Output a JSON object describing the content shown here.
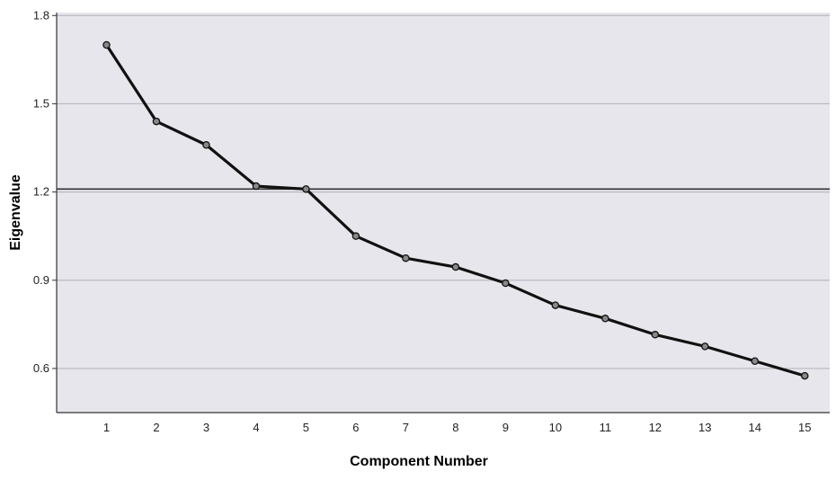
{
  "chart_data": {
    "type": "line",
    "title": "",
    "xlabel": "Component Number",
    "ylabel": "Eigenvalue",
    "x": [
      1,
      2,
      3,
      4,
      5,
      6,
      7,
      8,
      9,
      10,
      11,
      12,
      13,
      14,
      15
    ],
    "x_tick_labels": [
      "1",
      "2",
      "3",
      "4",
      "5",
      "6",
      "7",
      "8",
      "9",
      "10",
      "11",
      "12",
      "13",
      "14",
      "15"
    ],
    "series": [
      {
        "values": [
          1.7,
          1.44,
          1.36,
          1.22,
          1.21,
          1.05,
          0.975,
          0.945,
          0.89,
          0.815,
          0.77,
          0.715,
          0.675,
          0.625,
          0.575
        ]
      }
    ],
    "y_ticks": [
      0.6,
      0.9,
      1.2,
      1.5,
      1.8
    ],
    "y_tick_labels": [
      "0.6",
      "0.9",
      "1.2",
      "1.5",
      "1.8"
    ],
    "xlim": [
      0,
      15.5
    ],
    "ylim": [
      0.45,
      1.81
    ],
    "reference_line_y": 1.21,
    "grid": "horizontal",
    "legend": "none",
    "colors": {
      "plot_background": "#e6e6ec",
      "gridline": "#b8b8c0",
      "reference_line": "#333333",
      "line": "#111111",
      "marker_fill": "#888888",
      "marker_stroke": "#111111",
      "axis": "#333333"
    }
  }
}
